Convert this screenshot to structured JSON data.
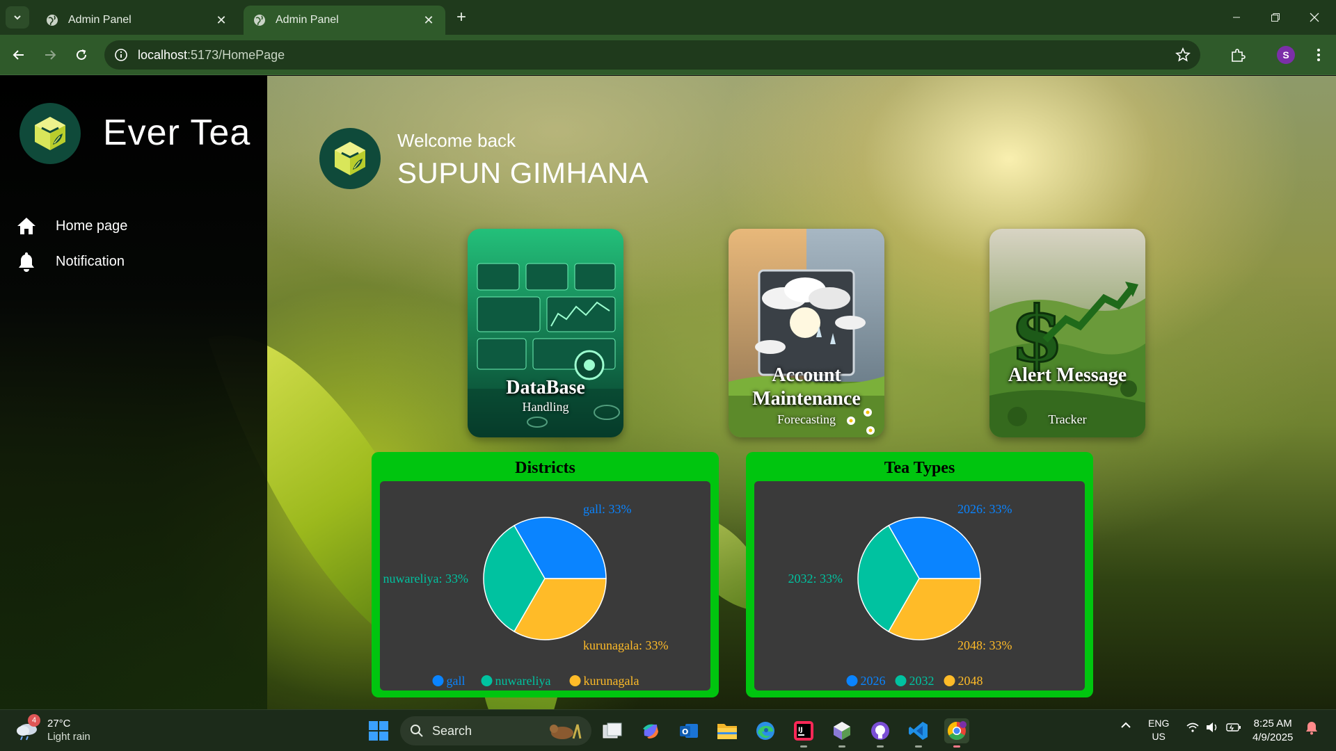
{
  "browser": {
    "tabs": [
      {
        "title": "Admin Panel"
      },
      {
        "title": "Admin Panel"
      }
    ],
    "url_host": "localhost",
    "url_rest": ":5173/HomePage",
    "profile_initial": "S"
  },
  "sidebar": {
    "brand": "Ever Tea",
    "items": [
      {
        "label": "Home page",
        "icon": "home-icon"
      },
      {
        "label": "Notification",
        "icon": "bell-icon"
      }
    ]
  },
  "welcome": {
    "greeting": "Welcome back",
    "name": "SUPUN GIMHANA"
  },
  "cards": [
    {
      "title": "DataBase",
      "subtitle": "Handling"
    },
    {
      "title": "Account Maintenance",
      "subtitle": "Forecasting"
    },
    {
      "title": "Alert Message",
      "subtitle": "Tracker"
    }
  ],
  "chart_data": [
    {
      "type": "pie",
      "title": "Districts",
      "categories": [
        "gall",
        "nuwareliya",
        "kurunagala"
      ],
      "values": [
        33,
        33,
        33
      ],
      "colors": [
        "#0a84ff",
        "#00c2a0",
        "#ffbb28"
      ],
      "slice_labels": [
        "gall: 33%",
        "nuwareliya: 33%",
        "kurunagala: 33%"
      ],
      "legend": "bottom"
    },
    {
      "type": "pie",
      "title": "Tea Types",
      "categories": [
        "2026",
        "2032",
        "2048"
      ],
      "values": [
        33,
        33,
        33
      ],
      "colors": [
        "#0a84ff",
        "#00c2a0",
        "#ffbb28"
      ],
      "slice_labels": [
        "2026: 33%",
        "2032: 33%",
        "2048: 33%"
      ],
      "legend": "bottom"
    }
  ],
  "taskbar": {
    "weather_badge": "4",
    "temperature": "27°C",
    "condition": "Light rain",
    "search_label": "Search",
    "lang_top": "ENG",
    "lang_bottom": "US",
    "time": "8:25 AM",
    "date": "4/9/2025"
  }
}
